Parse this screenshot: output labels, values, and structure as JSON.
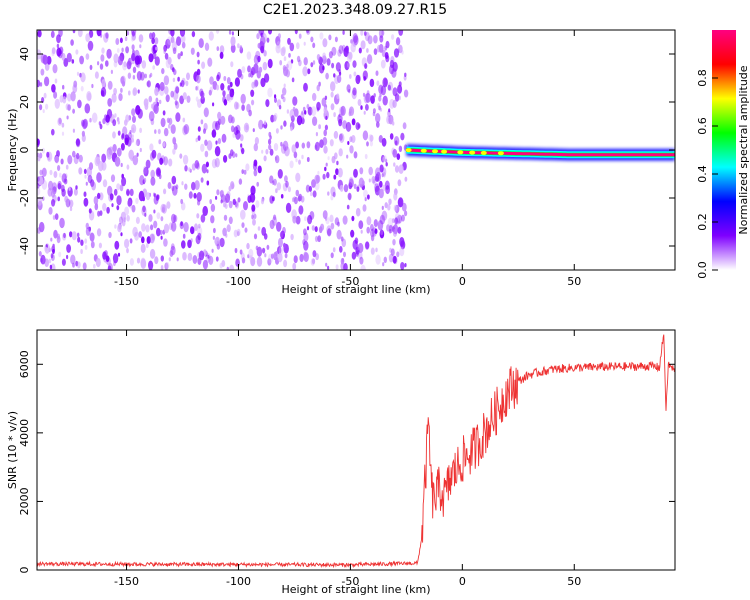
{
  "figure_title": "C2E1.2023.348.09.27.R15",
  "colorbar": {
    "label": "Normalized spectral amplitude",
    "ticks": [
      "0.0",
      "0.2",
      "0.4",
      "0.6",
      "0.8"
    ],
    "tick_values": [
      0.0,
      0.2,
      0.4,
      0.6,
      0.8
    ],
    "range": [
      0,
      1
    ],
    "colormap": [
      "#ffffff",
      "#7f00ff",
      "#0000ff",
      "#00ffff",
      "#00ff00",
      "#ffff00",
      "#ff0000",
      "#ff0080"
    ]
  },
  "chart_data": [
    {
      "type": "heatmap",
      "title": "",
      "xlabel": "Height of straight line (km)",
      "ylabel": "Frequency (Hz)",
      "xlim": [
        -190,
        95
      ],
      "ylim": [
        -50,
        50
      ],
      "xticks": [
        -150,
        -100,
        -50,
        0,
        50
      ],
      "yticks": [
        -40,
        -20,
        0,
        20,
        40
      ],
      "noise_region_x": [
        -190,
        -25
      ],
      "noise_amplitude_range": [
        0.0,
        0.15
      ],
      "signal_line": {
        "x_start": -25,
        "x_end": 95,
        "frequency_hz": [
          [
            -25,
            0
          ],
          [
            0,
            -1
          ],
          [
            50,
            -2
          ],
          [
            95,
            -2
          ]
        ],
        "peak_amplitude": 0.95
      },
      "colors": {
        "noise": "#7f00ff",
        "signal_peak": "#ff0000"
      }
    },
    {
      "type": "line",
      "title": "",
      "xlabel": "Height of straight line (km)",
      "ylabel": "SNR (10 * v/v)",
      "xlim": [
        -190,
        95
      ],
      "ylim": [
        0,
        7000
      ],
      "xticks": [
        -150,
        -100,
        -50,
        0,
        50
      ],
      "yticks": [
        0,
        2000,
        4000,
        6000
      ],
      "grid": false,
      "series": [
        {
          "color": "#ee3333",
          "approx_points": [
            [
              -190,
              180
            ],
            [
              -150,
              170
            ],
            [
              -100,
              160
            ],
            [
              -50,
              150
            ],
            [
              -20,
              200
            ],
            [
              -18,
              1000
            ],
            [
              -16,
              3300
            ],
            [
              -15,
              4300
            ],
            [
              -14,
              2500
            ],
            [
              -13,
              2000
            ],
            [
              -10,
              2400
            ],
            [
              -8,
              2100
            ],
            [
              -5,
              2700
            ],
            [
              0,
              3200
            ],
            [
              5,
              3500
            ],
            [
              10,
              4000
            ],
            [
              15,
              4600
            ],
            [
              20,
              5200
            ],
            [
              25,
              5500
            ],
            [
              30,
              5700
            ],
            [
              40,
              5850
            ],
            [
              50,
              5900
            ],
            [
              60,
              5920
            ],
            [
              70,
              5930
            ],
            [
              80,
              5940
            ],
            [
              85,
              5950
            ],
            [
              88,
              5900
            ],
            [
              90,
              6900
            ],
            [
              91,
              4600
            ],
            [
              92,
              6000
            ],
            [
              95,
              5800
            ]
          ]
        }
      ]
    }
  ]
}
